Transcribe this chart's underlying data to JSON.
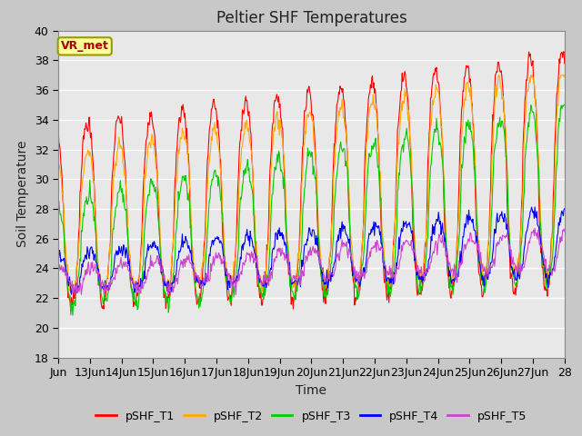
{
  "title": "Peltier SHF Temperatures",
  "xlabel": "Time",
  "ylabel": "Soil Temperature",
  "ylim": [
    18,
    40
  ],
  "yticks": [
    18,
    20,
    22,
    24,
    26,
    28,
    30,
    32,
    34,
    36,
    38,
    40
  ],
  "x_start_day": 12,
  "x_end_day": 28,
  "xtick_days": [
    12,
    13,
    14,
    15,
    16,
    17,
    18,
    19,
    20,
    21,
    22,
    23,
    24,
    25,
    26,
    27,
    28
  ],
  "xtick_labels": [
    "Jun",
    "13Jun",
    "14Jun",
    "15Jun",
    "16Jun",
    "17Jun",
    "18Jun",
    "19Jun",
    "20Jun",
    "21Jun",
    "22Jun",
    "23Jun",
    "24Jun",
    "25Jun",
    "26Jun",
    "27Jun",
    "28"
  ],
  "series_colors": [
    "#ff0000",
    "#ffaa00",
    "#00cc00",
    "#0000ff",
    "#cc44cc"
  ],
  "series_names": [
    "pSHF_T1",
    "pSHF_T2",
    "pSHF_T3",
    "pSHF_T4",
    "pSHF_T5"
  ],
  "annotation_text": "VR_met",
  "annotation_color": "#aa0000",
  "annotation_bg": "#ffff99",
  "annotation_border": "#999900",
  "fig_bg": "#c8c8c8",
  "plot_bg": "#e8e8e8",
  "grid_color": "#ffffff",
  "title_fontsize": 12,
  "axis_fontsize": 10,
  "tick_fontsize": 9,
  "legend_fontsize": 9
}
